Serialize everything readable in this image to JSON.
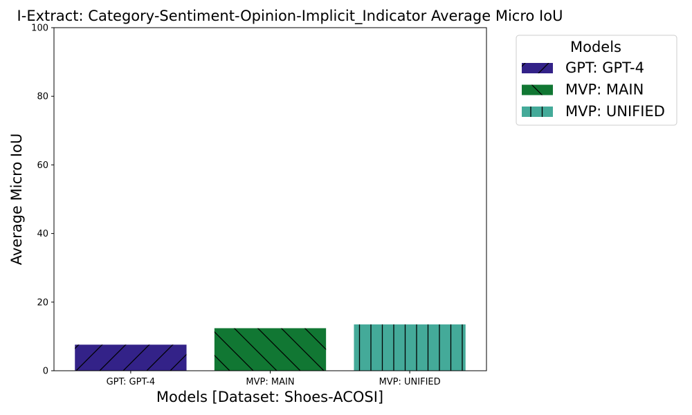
{
  "chart_data": {
    "type": "bar",
    "title": "I-Extract: Category-Sentiment-Opinion-Implicit_Indicator Average Micro IoU",
    "xlabel": "Models [Dataset: Shoes-ACOSI]",
    "ylabel": "Average Micro IoU",
    "ylim": [
      0,
      100
    ],
    "yticks": [
      0,
      20,
      40,
      60,
      80,
      100
    ],
    "categories": [
      "GPT: GPT-4",
      "MVP: MAIN",
      "MVP: UNIFIED"
    ],
    "values": [
      7.6,
      12.4,
      13.5
    ],
    "colors": [
      "#332288",
      "#117733",
      "#44AA99"
    ],
    "hatches": [
      "forward-diagonal",
      "back-diagonal",
      "vertical"
    ],
    "grid": false,
    "legend": {
      "title": "Models",
      "placement": "outside-top-right",
      "entries": [
        "GPT: GPT-4",
        "MVP: MAIN",
        "MVP: UNIFIED"
      ]
    }
  }
}
